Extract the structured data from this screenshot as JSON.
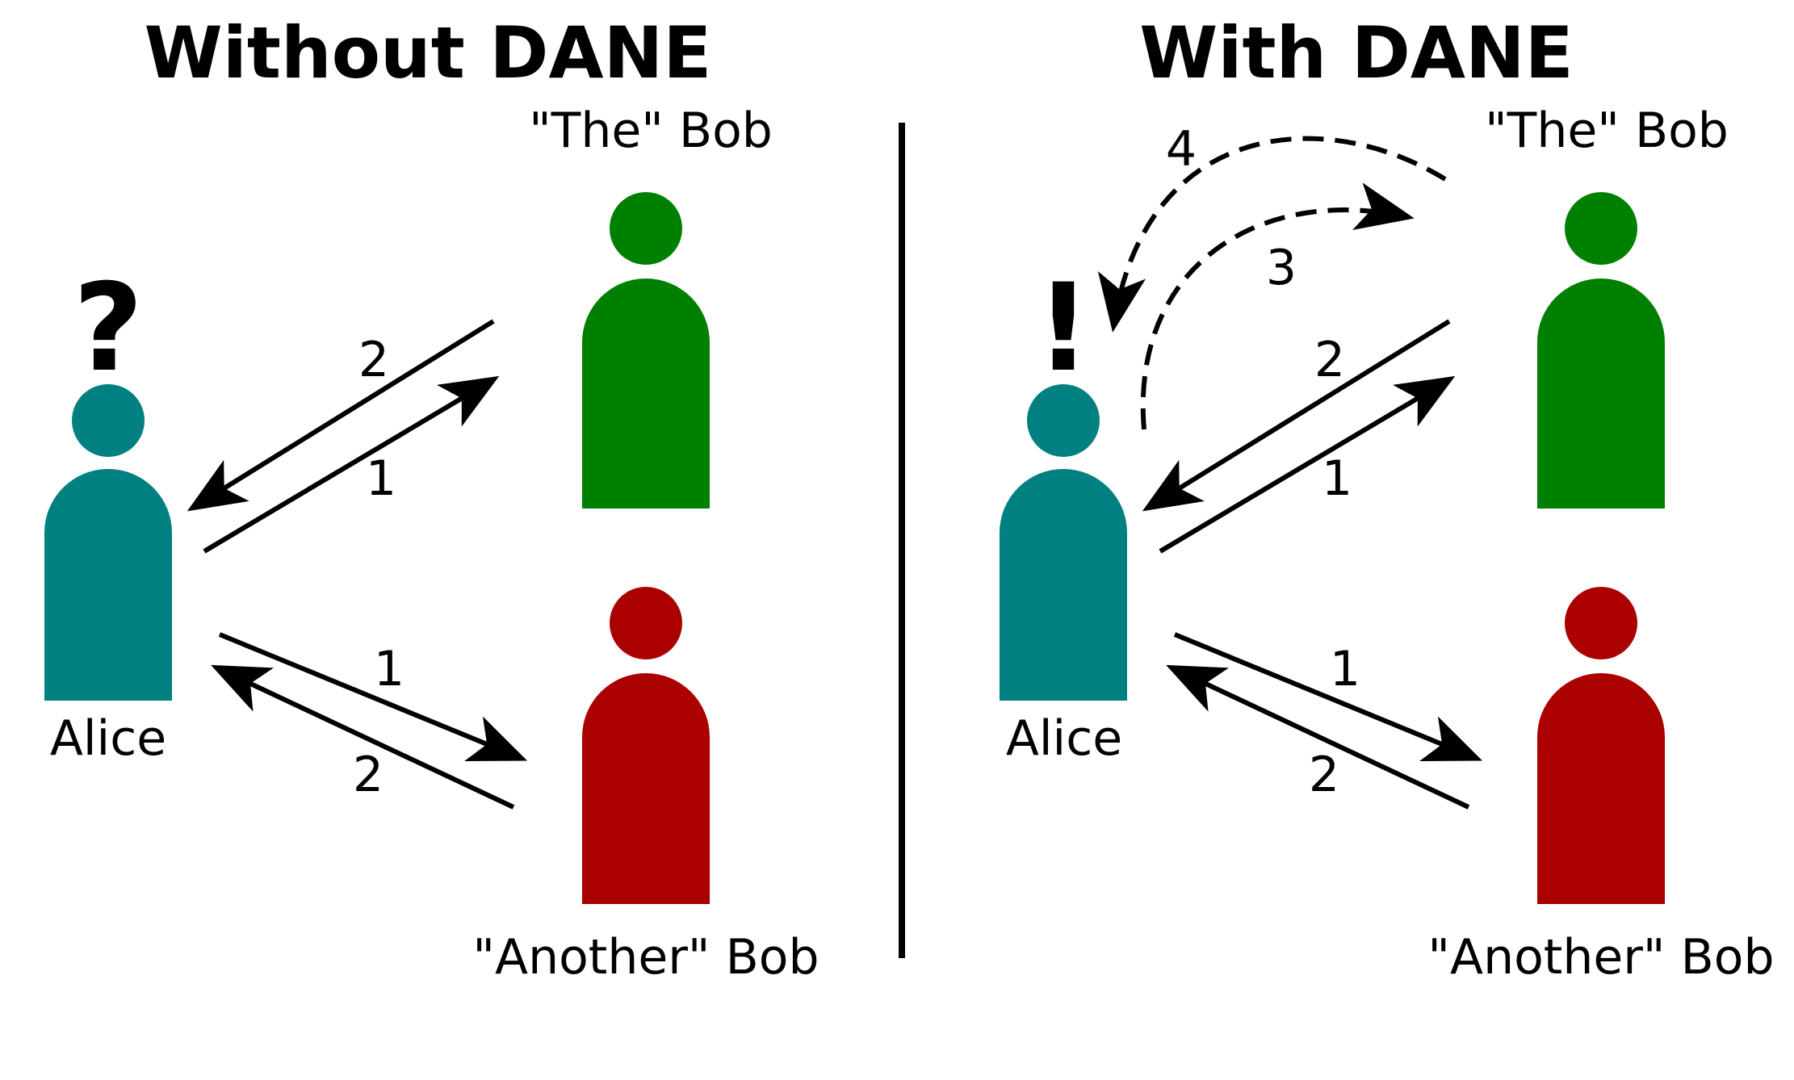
{
  "colors": {
    "alice": "#008080",
    "the_bob": "#008000",
    "another_bob": "#aa0000",
    "ink": "#000000",
    "background": "#ffffff"
  },
  "left_panel": {
    "title": "Without DANE",
    "mark": "?",
    "alice_label": "Alice",
    "the_bob_label": "\"The\" Bob",
    "another_bob_label": "\"Another\" Bob",
    "arrows": {
      "to_the_bob": "1",
      "from_the_bob": "2",
      "to_another_bob": "1",
      "from_another_bob": "2"
    }
  },
  "right_panel": {
    "title": "With DANE",
    "mark": "!",
    "alice_label": "Alice",
    "the_bob_label": "\"The\" Bob",
    "another_bob_label": "\"Another\" Bob",
    "arrows": {
      "to_the_bob": "1",
      "from_the_bob": "2",
      "to_another_bob": "1",
      "from_another_bob": "2",
      "dns_query": "3",
      "dns_response": "4"
    }
  },
  "icons": {
    "person": "person-icon",
    "arrow": "arrow-icon"
  }
}
